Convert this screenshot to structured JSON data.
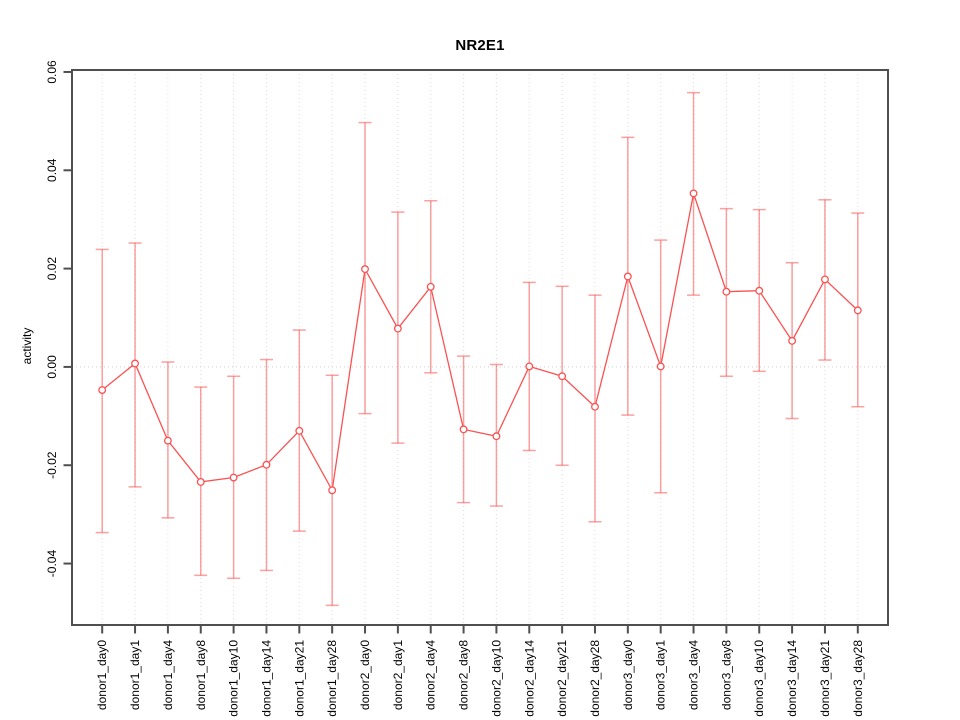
{
  "chart": {
    "title": "NR2E1",
    "ylabel": "activity"
  },
  "colors": {
    "line": "#fa5252",
    "errorbar": "rgba(250,82,82,0.55)",
    "frame": "#4f4f4f",
    "grid": "#dedede",
    "zero_line": "#cfcfcf",
    "marker_fill": "#ffffff",
    "text": "#000000"
  },
  "chart_data": {
    "type": "line",
    "title": "NR2E1",
    "xlabel": "",
    "ylabel": "activity",
    "ylim": [
      -0.0525,
      0.0604
    ],
    "yticks": [
      -0.04,
      -0.02,
      0,
      0.02,
      0.04,
      0.06
    ],
    "ytick_labels": [
      "-0.04",
      "-0.02",
      "0.00",
      "0.02",
      "0.04",
      "0.06"
    ],
    "grid": "vertical-dotted",
    "zero_line": "dotted",
    "legend_position": "none",
    "marker": "open-circle",
    "categories": [
      "donor1_day0",
      "donor1_day1",
      "donor1_day4",
      "donor1_day8",
      "donor1_day10",
      "donor1_day14",
      "donor1_day21",
      "donor1_day28",
      "donor2_day0",
      "donor2_day1",
      "donor2_day4",
      "donor2_day8",
      "donor2_day10",
      "donor2_day14",
      "donor2_day21",
      "donor2_day28",
      "donor3_day0",
      "donor3_day1",
      "donor3_day4",
      "donor3_day8",
      "donor3_day10",
      "donor3_day14",
      "donor3_day21",
      "donor3_day28"
    ],
    "series": [
      {
        "name": "activity",
        "values": [
          -0.0047,
          0.0007,
          -0.015,
          -0.0234,
          -0.0225,
          -0.0199,
          -0.013,
          -0.0251,
          0.0199,
          0.0078,
          0.0163,
          -0.0127,
          -0.0141,
          0.0001,
          -0.0019,
          -0.0081,
          0.0184,
          0.0001,
          0.0353,
          0.0153,
          0.0155,
          0.0053,
          0.0178,
          0.0115
        ],
        "upper": [
          0.0239,
          0.0252,
          0.001,
          -0.0041,
          -0.0019,
          0.0015,
          0.0075,
          -0.0017,
          0.0497,
          0.0315,
          0.0338,
          0.0022,
          0.0005,
          0.0172,
          0.0164,
          0.0146,
          0.0467,
          0.0258,
          0.0558,
          0.0322,
          0.032,
          0.0212,
          0.034,
          0.0313
        ],
        "lower": [
          -0.0337,
          -0.0244,
          -0.0307,
          -0.0424,
          -0.043,
          -0.0414,
          -0.0334,
          -0.0485,
          -0.0095,
          -0.0155,
          -0.0012,
          -0.0276,
          -0.0283,
          -0.017,
          -0.02,
          -0.0315,
          -0.0098,
          -0.0256,
          0.0146,
          -0.0019,
          -0.0009,
          -0.0105,
          0.0014,
          -0.0081
        ]
      }
    ]
  }
}
